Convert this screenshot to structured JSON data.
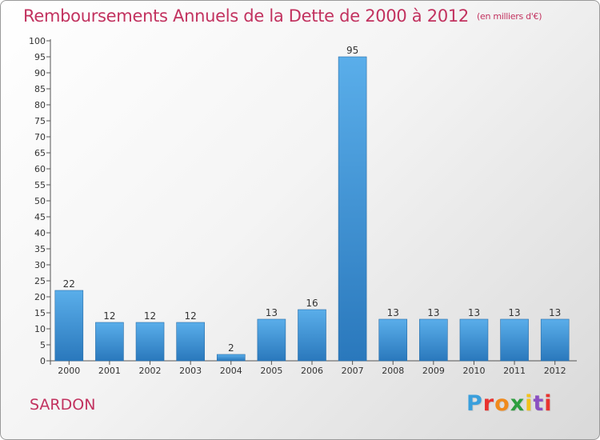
{
  "header": {
    "title": "Remboursements Annuels de la Dette de 2000 à 2012",
    "subtitle": "(en milliers d'€)"
  },
  "commune": "SARDON",
  "logo": {
    "text": "Proxiti",
    "letter_colors": [
      "#3a9fdc",
      "#e8322f",
      "#f08a1c",
      "#2e9e3f",
      "#f2c21b",
      "#8a4fc2",
      "#e8322f"
    ]
  },
  "colors": {
    "bar_light": "#5aaeea",
    "bar_dark": "#2a78bc",
    "accent": "#c2325f"
  },
  "chart_data": {
    "type": "bar",
    "categories": [
      "2000",
      "2001",
      "2002",
      "2003",
      "2004",
      "2005",
      "2006",
      "2007",
      "2008",
      "2009",
      "2010",
      "2011",
      "2012"
    ],
    "values": [
      22,
      12,
      12,
      12,
      2,
      13,
      16,
      95,
      13,
      13,
      13,
      13,
      13
    ],
    "data_labels": [
      "22",
      "12",
      "12",
      "12",
      "2",
      "13",
      "16",
      "95",
      "13",
      "13",
      "13",
      "13",
      "13"
    ],
    "y_ticks": [
      "0",
      "5",
      "10",
      "15",
      "20",
      "25",
      "30",
      "35",
      "40",
      "45",
      "50",
      "55",
      "60",
      "65",
      "70",
      "75",
      "80",
      "85",
      "90",
      "95",
      "100"
    ],
    "ylim": [
      0,
      100
    ],
    "ytick_step": 5,
    "grid": false
  }
}
